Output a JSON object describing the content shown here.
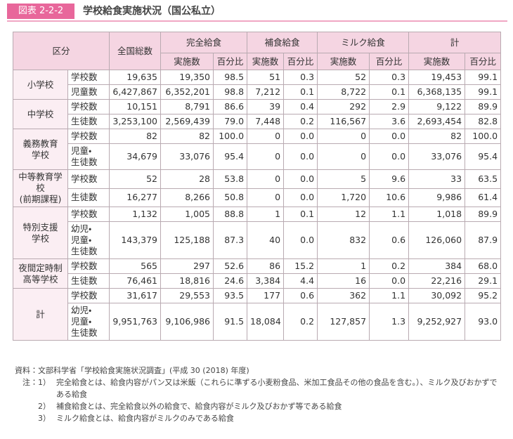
{
  "header": {
    "figure": "図表 2-2-2",
    "title": "学校給食実施状況（国公私立）"
  },
  "table": {
    "head": {
      "category": "区分",
      "total": "全国総数",
      "groups": [
        "完全給食",
        "補食給食",
        "ミルク給食",
        "計"
      ],
      "subs": [
        "実施数",
        "百分比",
        "実施数",
        "百分比",
        "実施数",
        "百分比",
        "実施数",
        "百分比"
      ]
    },
    "groups": [
      {
        "label": "小学校",
        "rows": [
          {
            "label": "学校数",
            "values": [
              "19,635",
              "19,350",
              "98.5",
              "51",
              "0.3",
              "52",
              "0.3",
              "19,453",
              "99.1"
            ]
          },
          {
            "label": "児童数",
            "values": [
              "6,427,867",
              "6,352,201",
              "98.8",
              "7,212",
              "0.1",
              "8,722",
              "0.1",
              "6,368,135",
              "99.1"
            ]
          }
        ]
      },
      {
        "label": "中学校",
        "rows": [
          {
            "label": "学校数",
            "values": [
              "10,151",
              "8,791",
              "86.6",
              "39",
              "0.4",
              "292",
              "2.9",
              "9,122",
              "89.9"
            ]
          },
          {
            "label": "生徒数",
            "values": [
              "3,253,100",
              "2,569,439",
              "79.0",
              "7,448",
              "0.2",
              "116,567",
              "3.6",
              "2,693,454",
              "82.8"
            ]
          }
        ]
      },
      {
        "label": "義務教育\n学校",
        "rows": [
          {
            "label": "学校数",
            "values": [
              "82",
              "82",
              "100.0",
              "0",
              "0.0",
              "0",
              "0.0",
              "82",
              "100.0"
            ]
          },
          {
            "label": "児童・\n生徒数",
            "values": [
              "34,679",
              "33,076",
              "95.4",
              "0",
              "0.0",
              "0",
              "0.0",
              "33,076",
              "95.4"
            ]
          }
        ]
      },
      {
        "label": "中等教育学校\n(前期課程)",
        "rows": [
          {
            "label": "学校数",
            "values": [
              "52",
              "28",
              "53.8",
              "0",
              "0.0",
              "5",
              "9.6",
              "33",
              "63.5"
            ]
          },
          {
            "label": "生徒数",
            "values": [
              "16,277",
              "8,266",
              "50.8",
              "0",
              "0.0",
              "1,720",
              "10.6",
              "9,986",
              "61.4"
            ]
          }
        ]
      },
      {
        "label": "特別支援\n学校",
        "rows": [
          {
            "label": "学校数",
            "values": [
              "1,132",
              "1,005",
              "88.8",
              "1",
              "0.1",
              "12",
              "1.1",
              "1,018",
              "89.9"
            ]
          },
          {
            "label": "幼児・\n児童・\n生徒数",
            "values": [
              "143,379",
              "125,188",
              "87.3",
              "40",
              "0.0",
              "832",
              "0.6",
              "126,060",
              "87.9"
            ]
          }
        ]
      },
      {
        "label": "夜間定時制\n高等学校",
        "rows": [
          {
            "label": "学校数",
            "values": [
              "565",
              "297",
              "52.6",
              "86",
              "15.2",
              "1",
              "0.2",
              "384",
              "68.0"
            ]
          },
          {
            "label": "生徒数",
            "values": [
              "76,461",
              "18,816",
              "24.6",
              "3,384",
              "4.4",
              "16",
              "0.0",
              "22,216",
              "29.1"
            ]
          }
        ]
      },
      {
        "label": "計",
        "rows": [
          {
            "label": "学校数",
            "values": [
              "31,617",
              "29,553",
              "93.5",
              "177",
              "0.6",
              "362",
              "1.1",
              "30,092",
              "95.2"
            ]
          },
          {
            "label": "幼児・\n児童・\n生徒数",
            "values": [
              "9,951,763",
              "9,106,986",
              "91.5",
              "18,084",
              "0.2",
              "127,857",
              "1.3",
              "9,252,927",
              "93.0"
            ]
          }
        ]
      }
    ]
  },
  "notes": {
    "source": {
      "label": "資料：",
      "text": "文部科学省「学校給食実施状況調査」(平成 30 (2018) 年度)"
    },
    "label": "注：",
    "items": [
      {
        "num": "1）",
        "text": "完全給食とは、給食内容がパン又は米飯（これらに準ずる小麦粉食品、米加工食品その他の食品を含む。）、ミルク及びおかずである給食"
      },
      {
        "num": "2）",
        "text": "補食給食とは、完全給食以外の給食で、給食内容がミルク及びおかず等である給食"
      },
      {
        "num": "3）",
        "text": "ミルク給食とは、給食内容がミルクのみである給食"
      }
    ]
  }
}
